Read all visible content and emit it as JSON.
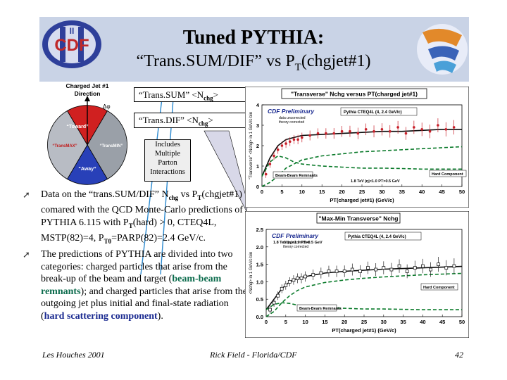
{
  "slide": {
    "title_line1": "Tuned PYTHIA:",
    "title_line2_pre": "“Trans.SUM/DIF” vs P",
    "title_line2_sub": "T",
    "title_line2_post": "(chgjet#1)",
    "logo_left_text": "CDF",
    "logo_left_numeral": "II"
  },
  "diagram": {
    "label_top": "Charged Jet #1",
    "label_top2": "Direction",
    "delta_phi": "Δφ",
    "toward": "“Toward”",
    "away": "“Away”",
    "transmax": "“TransMAX”",
    "transmin": "“TransMIN”"
  },
  "callouts": {
    "transsum_pre": "“Trans.SUM” <N",
    "transsum_sub": "chg",
    "transsum_post": ">",
    "transdif_pre": "“Trans.DIF” <N",
    "transdif_sub": "chg",
    "transdif_post": ">",
    "mpi_line1": "Includes",
    "mpi_line2": "Multiple",
    "mpi_line3": "Parton",
    "mpi_line4": "Interactions"
  },
  "bullets": {
    "b1_a": "Data on the “trans.SUM/DIF” N",
    "b1_sub1": "chg",
    "b1_b": " vs P",
    "b1_sub2": "T",
    "b1_c": "(chgjet#1) comared with the QCD Monte-Carlo predictions of PYTHIA 6.115 with P",
    "b1_sub3": "T",
    "b1_d": "(hard) > 0, CTEQ4L, MSTP(82)=4, P",
    "b1_sub4": "T0",
    "b1_e": "=PARP(82)=2.4 GeV/c.",
    "b2_a": "The predictions of PYTHIA are divided into two categories: charged particles that arise from the break-up of the beam and target (",
    "b2_hl1": "beam-beam remnants",
    "b2_b": "); and charged particles that arise from the outgoing jet plus initial and final-state radiation (",
    "b2_hl2": "hard scattering component",
    "b2_c": ")."
  },
  "footer": {
    "left": "Les Houches 2001",
    "center": "Rick Field - Florida/CDF",
    "page": "42"
  },
  "chart_data": [
    {
      "type": "scatter",
      "title": "\"Transverse\" Nchg versus PT(charged jet#1)",
      "xlabel": "PT(charged jet#1) (GeV/c)",
      "ylabel": "\"Transverse\" <Nchg> in 1 GeV/c bin",
      "xlim": [
        0,
        50
      ],
      "ylim": [
        0,
        4
      ],
      "xticks": [
        "0",
        "5",
        "10",
        "15",
        "20",
        "25",
        "30",
        "35",
        "40",
        "45",
        "50"
      ],
      "yticks": [
        "0",
        "1",
        "2",
        "3",
        "4"
      ],
      "legend_preliminary": "CDF Preliminary",
      "legend_data": "data uncorrected",
      "legend_theory": "theory corrected",
      "legend_model": "Pythia CTEQ4L (4, 2.4 GeV/c)",
      "label_hard": "Hard Component",
      "label_beam": "Beam-Beam Remnants",
      "label_cut": "1.8 TeV |η|<1.0 PT>0.5 GeV",
      "data": {
        "x": [
          1,
          2,
          3,
          4,
          5,
          6,
          7,
          8,
          9,
          10,
          12,
          14,
          16,
          18,
          20,
          22,
          24,
          26,
          28,
          30,
          32,
          34,
          36,
          38,
          40,
          42,
          44,
          46,
          48
        ],
        "y": [
          0.6,
          1.1,
          1.5,
          1.8,
          2.0,
          2.1,
          2.2,
          2.3,
          2.3,
          2.4,
          2.5,
          2.6,
          2.6,
          2.6,
          2.7,
          2.7,
          2.6,
          2.8,
          2.7,
          2.8,
          2.7,
          2.9,
          2.6,
          2.9,
          2.8,
          2.7,
          3.0,
          2.8,
          2.9
        ]
      },
      "model_total": {
        "x": [
          0,
          2,
          4,
          6,
          8,
          10,
          15,
          20,
          25,
          30,
          35,
          40,
          45,
          50
        ],
        "y": [
          0.5,
          1.4,
          2.0,
          2.3,
          2.4,
          2.5,
          2.55,
          2.6,
          2.65,
          2.7,
          2.7,
          2.75,
          2.8,
          2.8
        ]
      },
      "model_beam": {
        "x": [
          0,
          2,
          4,
          6,
          8,
          10,
          15,
          20,
          25,
          30,
          35,
          40,
          45,
          50
        ],
        "y": [
          0.5,
          1.2,
          1.5,
          1.4,
          1.2,
          1.1,
          1.0,
          0.95,
          0.9,
          0.9,
          0.88,
          0.85,
          0.85,
          0.85
        ]
      },
      "model_hard": {
        "x": [
          0,
          2,
          4,
          6,
          8,
          10,
          15,
          20,
          25,
          30,
          35,
          40,
          45,
          50
        ],
        "y": [
          0.0,
          0.2,
          0.5,
          0.9,
          1.1,
          1.3,
          1.5,
          1.6,
          1.7,
          1.75,
          1.8,
          1.85,
          1.9,
          1.95
        ]
      }
    },
    {
      "type": "scatter",
      "title": "\"Max-Min Transverse\" Nchg",
      "xlabel": "PT(charged jet#1) (GeV/c)",
      "ylabel": "<Nchg> in 1 GeV/c bin",
      "xlim": [
        0,
        50
      ],
      "ylim": [
        0,
        2.5
      ],
      "xticks": [
        "0",
        "5",
        "10",
        "15",
        "20",
        "25",
        "30",
        "35",
        "40",
        "45",
        "50"
      ],
      "yticks": [
        "0.0",
        "0.5",
        "1.0",
        "1.5",
        "2.0",
        "2.5"
      ],
      "legend_preliminary": "CDF Preliminary",
      "legend_data": "data uncorrected",
      "legend_theory": "theory corrected",
      "legend_model": "Pythia CTEQ4L (4, 2.4 GeV/c)",
      "label_hard": "Hard Component",
      "label_beam": "Beam-Beam Remnants",
      "label_cut": "1.8 TeV |η|<1.0 PT>0.5 GeV",
      "data": {
        "x": [
          1,
          2,
          3,
          4,
          5,
          6,
          7,
          8,
          9,
          10,
          12,
          14,
          16,
          18,
          20,
          22,
          24,
          26,
          28,
          30,
          32,
          34,
          36,
          38,
          40,
          42,
          44,
          46,
          48
        ],
        "y": [
          0.2,
          0.4,
          0.6,
          0.8,
          0.9,
          1.0,
          1.05,
          1.1,
          1.1,
          1.15,
          1.2,
          1.25,
          1.3,
          1.3,
          1.3,
          1.35,
          1.3,
          1.4,
          1.35,
          1.4,
          1.35,
          1.45,
          1.3,
          1.4,
          1.45,
          1.35,
          1.5,
          1.4,
          1.45
        ]
      },
      "model_total": {
        "x": [
          0,
          2,
          4,
          6,
          8,
          10,
          15,
          20,
          25,
          30,
          35,
          40,
          45,
          50
        ],
        "y": [
          0.2,
          0.5,
          0.8,
          1.0,
          1.1,
          1.15,
          1.25,
          1.3,
          1.33,
          1.36,
          1.38,
          1.4,
          1.42,
          1.44
        ]
      },
      "model_beam": {
        "x": [
          0,
          2,
          4,
          6,
          8,
          10,
          15,
          20,
          25,
          30,
          35,
          40,
          45,
          50
        ],
        "y": [
          0.2,
          0.35,
          0.4,
          0.38,
          0.33,
          0.3,
          0.26,
          0.24,
          0.22,
          0.22,
          0.21,
          0.2,
          0.2,
          0.2
        ]
      },
      "model_hard": {
        "x": [
          0,
          2,
          4,
          6,
          8,
          10,
          15,
          20,
          25,
          30,
          35,
          40,
          45,
          50
        ],
        "y": [
          0.0,
          0.15,
          0.4,
          0.6,
          0.75,
          0.85,
          0.98,
          1.05,
          1.1,
          1.14,
          1.17,
          1.2,
          1.22,
          1.24
        ]
      }
    }
  ]
}
